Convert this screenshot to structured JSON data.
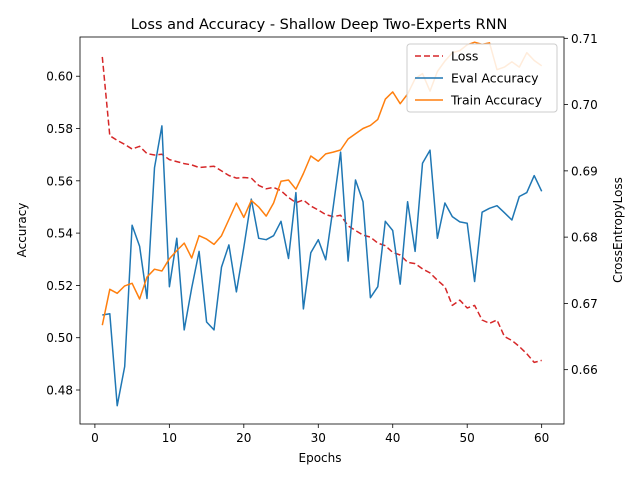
{
  "chart_data": {
    "type": "line",
    "title": "Loss and Accuracy - Shallow Deep Two-Experts RNN",
    "xlabel": "Epochs",
    "ylabel": "Accuracy",
    "y2label": "CrossEntropyLoss",
    "xlim": [
      -2,
      63
    ],
    "ylim": [
      0.467,
      0.615
    ],
    "y2lim": [
      0.6518,
      0.7102
    ],
    "xticks": [
      0,
      10,
      20,
      30,
      40,
      50,
      60
    ],
    "yticks": [
      0.48,
      0.5,
      0.52,
      0.54,
      0.56,
      0.58,
      0.6
    ],
    "y2ticks": [
      0.66,
      0.67,
      0.68,
      0.69,
      0.7,
      0.71
    ],
    "legend_position": "top-right",
    "x": [
      1,
      2,
      3,
      4,
      5,
      6,
      7,
      8,
      9,
      10,
      11,
      12,
      13,
      14,
      15,
      16,
      17,
      18,
      19,
      20,
      21,
      22,
      23,
      24,
      25,
      26,
      27,
      28,
      29,
      30,
      31,
      32,
      33,
      34,
      35,
      36,
      37,
      38,
      39,
      40,
      41,
      42,
      43,
      44,
      45,
      46,
      47,
      48,
      49,
      50,
      51,
      52,
      53,
      54,
      55,
      56,
      57,
      58,
      59,
      60
    ],
    "series": [
      {
        "name": "Loss",
        "axis": "right",
        "color": "#d62728",
        "dashed": true,
        "values": [
          0.7072,
          0.6953,
          0.6946,
          0.694,
          0.6933,
          0.6937,
          0.6926,
          0.6924,
          0.6925,
          0.6917,
          0.6914,
          0.6911,
          0.6909,
          0.6905,
          0.6906,
          0.6907,
          0.69,
          0.6893,
          0.6889,
          0.689,
          0.6889,
          0.6878,
          0.6873,
          0.6875,
          0.687,
          0.686,
          0.6852,
          0.6856,
          0.6847,
          0.6841,
          0.6834,
          0.6831,
          0.6833,
          0.6817,
          0.681,
          0.6803,
          0.68,
          0.6791,
          0.6787,
          0.6777,
          0.6773,
          0.6762,
          0.676,
          0.6752,
          0.6746,
          0.6735,
          0.6725,
          0.6697,
          0.6705,
          0.6693,
          0.6697,
          0.6675,
          0.667,
          0.6675,
          0.665,
          0.6644,
          0.6635,
          0.6624,
          0.6611,
          0.6614
        ]
      },
      {
        "name": "Eval Accuracy",
        "axis": "left",
        "color": "#1f77b4",
        "dashed": false,
        "values": [
          0.5087,
          0.5092,
          0.474,
          0.489,
          0.543,
          0.535,
          0.515,
          0.565,
          0.581,
          0.5195,
          0.538,
          0.503,
          0.519,
          0.533,
          0.506,
          0.503,
          0.527,
          0.5355,
          0.5175,
          0.5345,
          0.553,
          0.538,
          0.5375,
          0.539,
          0.5445,
          0.5303,
          0.5555,
          0.511,
          0.5325,
          0.5375,
          0.5298,
          0.55,
          0.571,
          0.5293,
          0.5603,
          0.552,
          0.5153,
          0.5195,
          0.5445,
          0.541,
          0.5205,
          0.552,
          0.533,
          0.5667,
          0.5717,
          0.538,
          0.5515,
          0.5463,
          0.5443,
          0.5438,
          0.5215,
          0.548,
          0.5495,
          0.5505,
          0.5478,
          0.545,
          0.554,
          0.5555,
          0.562,
          0.556
        ]
      },
      {
        "name": "Train Accuracy",
        "axis": "left",
        "color": "#ff7f0e",
        "dashed": false,
        "values": [
          0.5048,
          0.5185,
          0.517,
          0.5198,
          0.5208,
          0.5148,
          0.5232,
          0.5262,
          0.5255,
          0.5302,
          0.5333,
          0.5362,
          0.5305,
          0.539,
          0.5377,
          0.5357,
          0.539,
          0.5452,
          0.5515,
          0.546,
          0.5525,
          0.55,
          0.5465,
          0.5515,
          0.5598,
          0.5603,
          0.5568,
          0.5628,
          0.5695,
          0.5675,
          0.5703,
          0.571,
          0.5718,
          0.576,
          0.578,
          0.58,
          0.5812,
          0.5835,
          0.5912,
          0.594,
          0.5895,
          0.5932,
          0.599,
          0.601,
          0.5943,
          0.6018,
          0.6058,
          0.609,
          0.6098,
          0.612,
          0.613,
          0.6122,
          0.6128,
          0.6025,
          0.6035,
          0.6055,
          0.6035,
          0.609,
          0.606,
          0.604
        ]
      }
    ]
  }
}
